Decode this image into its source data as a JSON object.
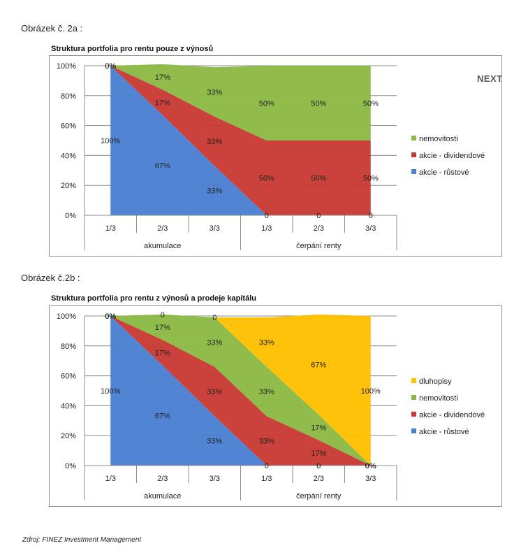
{
  "next_label": "NEXT",
  "source": "Zdroj: FINEZ Investment Management",
  "colors": {
    "blue": "#4a7fd0",
    "red": "#c83a33",
    "green": "#8ab943",
    "yellow": "#ffc000"
  },
  "chart_data": [
    {
      "figure_caption": "Obrázek č. 2a :",
      "type": "area",
      "stacked": true,
      "title": "Struktura portfolia pro rentu pouze z výnosů",
      "categories": [
        "1/3",
        "2/3",
        "3/3",
        "1/3",
        "2/3",
        "3/3"
      ],
      "groups": [
        {
          "label": "akumulace",
          "span": 3
        },
        {
          "label": "čerpání renty",
          "span": 3
        }
      ],
      "yticks": [
        "0%",
        "20%",
        "40%",
        "60%",
        "80%",
        "100%"
      ],
      "ylim": [
        0,
        100
      ],
      "grid": true,
      "legend_position": "right",
      "series": [
        {
          "name": "akcie - růstové",
          "color": "#4a7fd0",
          "values": [
            100,
            67,
            33,
            0,
            0,
            0
          ],
          "labels": [
            "100%",
            "67%",
            "33%",
            "0",
            "0",
            "0"
          ]
        },
        {
          "name": "akcie - dividendové",
          "color": "#c83a33",
          "values": [
            0,
            17,
            33,
            50,
            50,
            50
          ],
          "labels": [
            "0%",
            "17%",
            "33%",
            "50%",
            "50%",
            "50%"
          ]
        },
        {
          "name": "nemovitosti",
          "color": "#8ab943",
          "values": [
            0,
            17,
            33,
            50,
            50,
            50
          ],
          "labels": [
            "0%",
            "17%",
            "33%",
            "50%",
            "50%",
            "50%"
          ]
        }
      ],
      "legend_order": [
        "nemovitosti",
        "akcie - dividendové",
        "akcie - růstové"
      ]
    },
    {
      "figure_caption": "Obrázek č.2b :",
      "type": "area",
      "stacked": true,
      "title": "Struktura portfolia pro rentu z výnosů a prodeje kapitálu",
      "categories": [
        "1/3",
        "2/3",
        "3/3",
        "1/3",
        "2/3",
        "3/3"
      ],
      "groups": [
        {
          "label": "akumulace",
          "span": 3
        },
        {
          "label": "čerpání renty",
          "span": 3
        }
      ],
      "yticks": [
        "0%",
        "20%",
        "40%",
        "60%",
        "80%",
        "100%"
      ],
      "ylim": [
        0,
        100
      ],
      "grid": true,
      "legend_position": "right",
      "series": [
        {
          "name": "akcie - růstové",
          "color": "#4a7fd0",
          "values": [
            100,
            67,
            33,
            0,
            0,
            0
          ],
          "labels": [
            "100%",
            "67%",
            "33%",
            "0",
            "0",
            "0%"
          ]
        },
        {
          "name": "akcie - dividendové",
          "color": "#c83a33",
          "values": [
            0,
            17,
            33,
            33,
            17,
            0
          ],
          "labels": [
            "0%",
            "17%",
            "33%",
            "33%",
            "17%",
            "0%"
          ]
        },
        {
          "name": "nemovitosti",
          "color": "#8ab943",
          "values": [
            0,
            17,
            33,
            33,
            17,
            0
          ],
          "labels": [
            "0%",
            "17%",
            "33%",
            "33%",
            "17%",
            "0%"
          ]
        },
        {
          "name": "dluhopisy",
          "color": "#ffc000",
          "values": [
            0,
            0,
            0,
            33,
            67,
            100
          ],
          "labels": [
            "0%",
            "0",
            "0",
            "33%",
            "67%",
            "100%"
          ]
        }
      ],
      "legend_order": [
        "dluhopisy",
        "nemovitosti",
        "akcie - dividendové",
        "akcie - růstové"
      ]
    }
  ]
}
